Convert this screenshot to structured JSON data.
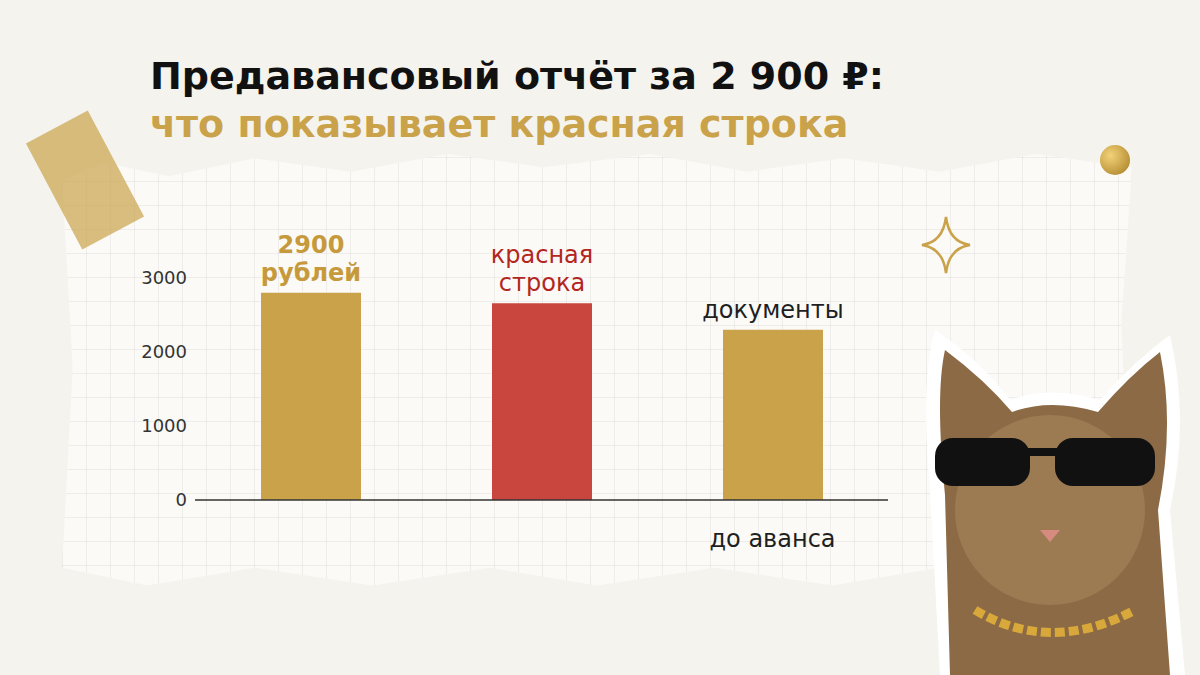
{
  "chart_data": {
    "type": "bar",
    "title": "Предавансовый отчёт за 2 900 ₽:",
    "subtitle": "что показывает красная строка",
    "categories": [
      null,
      null,
      "до аванса"
    ],
    "values": [
      2800,
      2660,
      2300
    ],
    "colors": [
      "#c9a24a",
      "#c8463d",
      "#c9a24a"
    ],
    "annotations": [
      {
        "text": "2900 рублей",
        "color": "#c69a3c"
      },
      {
        "text": "красная строка",
        "color": "#b3261e"
      },
      {
        "text": "документы",
        "color": "#1f1f1f"
      }
    ],
    "ylim": [
      0,
      3000
    ],
    "yticks": [
      0,
      1000,
      2000,
      3000
    ],
    "grid": false
  }
}
